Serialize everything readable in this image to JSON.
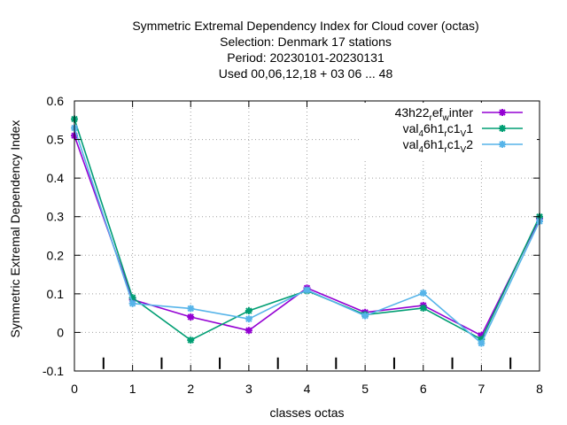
{
  "chart_data": {
    "type": "line",
    "title_lines": [
      "Symmetric Extremal Dependency Index  for Cloud cover (octas)",
      "Selection: Denmark      17 stations",
      "Period: 20230101-20230131",
      "Used  00,06,12,18  + 03 06 ... 48"
    ],
    "xlabel": "classes octas",
    "ylabel": "Symmetric Extremal Dependency Index",
    "xlim": [
      0,
      8
    ],
    "ylim": [
      -0.1,
      0.6
    ],
    "x_ticks": [
      "0",
      "1",
      "2",
      "3",
      "4",
      "5",
      "6",
      "7",
      "8"
    ],
    "y_ticks": [
      "-0.1",
      "0",
      "0.1",
      "0.2",
      "0.3",
      "0.4",
      "0.5",
      "0.6"
    ],
    "grid": true,
    "legend_position": "top-right",
    "class_markers": [
      0.5,
      1.5,
      2.5,
      3.5,
      4.5,
      5.5,
      6.5,
      7.5
    ],
    "x": [
      0,
      1,
      2,
      3,
      4,
      5,
      6,
      7,
      8
    ],
    "series": [
      {
        "label_parts": [
          {
            "t": "43h22",
            "sub": false
          },
          {
            "t": "r",
            "sub": true
          },
          {
            "t": "ef",
            "sub": false
          },
          {
            "t": "w",
            "sub": true
          },
          {
            "t": "inter",
            "sub": false
          }
        ],
        "color": "#9400d3",
        "values": [
          0.51,
          0.085,
          0.04,
          0.005,
          0.115,
          0.052,
          0.07,
          -0.008,
          0.295
        ]
      },
      {
        "label_parts": [
          {
            "t": "val",
            "sub": false
          },
          {
            "t": "4",
            "sub": true
          },
          {
            "t": "6h1",
            "sub": false
          },
          {
            "t": "r",
            "sub": true
          },
          {
            "t": "c1",
            "sub": false
          },
          {
            "t": "V",
            "sub": true
          },
          {
            "t": "1",
            "sub": false
          }
        ],
        "color": "#009e73",
        "values": [
          0.553,
          0.09,
          -0.02,
          0.056,
          0.108,
          0.046,
          0.063,
          -0.018,
          0.3
        ]
      },
      {
        "label_parts": [
          {
            "t": "val",
            "sub": false
          },
          {
            "t": "4",
            "sub": true
          },
          {
            "t": "6h1",
            "sub": false
          },
          {
            "t": "r",
            "sub": true
          },
          {
            "t": "c1",
            "sub": false
          },
          {
            "t": "V",
            "sub": true
          },
          {
            "t": "2",
            "sub": false
          }
        ],
        "color": "#56b4e9",
        "values": [
          0.53,
          0.075,
          0.062,
          0.035,
          0.11,
          0.043,
          0.102,
          -0.028,
          0.288
        ]
      }
    ]
  }
}
